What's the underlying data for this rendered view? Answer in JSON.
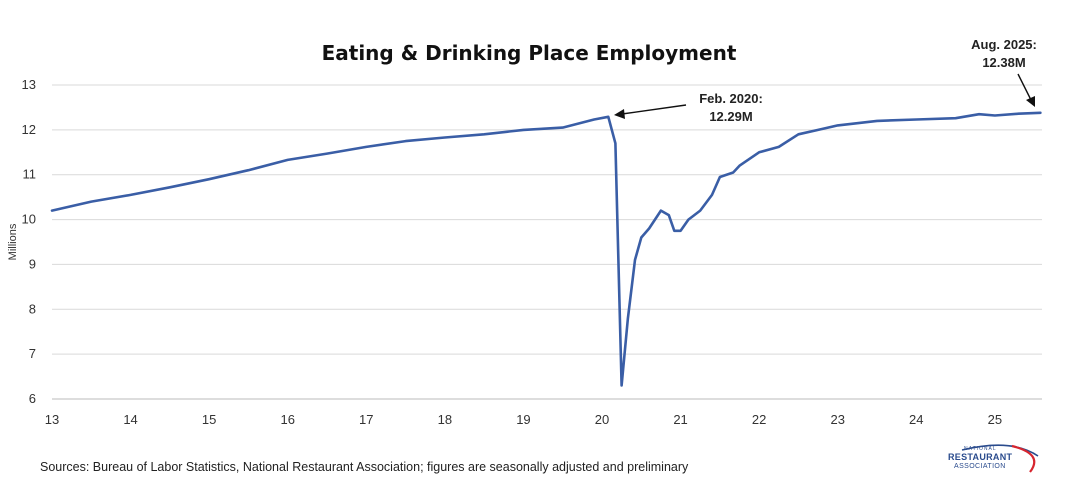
{
  "chart_data": {
    "type": "line",
    "title": "Eating & Drinking Place Employment",
    "xlabel": "",
    "ylabel": "Millions",
    "xlim": [
      13,
      25.6
    ],
    "ylim": [
      6,
      13
    ],
    "x_ticks": [
      "13",
      "14",
      "15",
      "16",
      "17",
      "18",
      "19",
      "20",
      "21",
      "22",
      "23",
      "24",
      "25"
    ],
    "y_ticks": [
      "6",
      "7",
      "8",
      "9",
      "10",
      "11",
      "12",
      "13"
    ],
    "grid": "horizontal",
    "series": [
      {
        "name": "Eating & Drinking Place Employment",
        "color": "#3a5ea6",
        "points": [
          [
            13.0,
            10.2
          ],
          [
            13.5,
            10.4
          ],
          [
            14.0,
            10.55
          ],
          [
            14.5,
            10.72
          ],
          [
            15.0,
            10.9
          ],
          [
            15.5,
            11.1
          ],
          [
            16.0,
            11.33
          ],
          [
            16.5,
            11.47
          ],
          [
            17.0,
            11.62
          ],
          [
            17.5,
            11.75
          ],
          [
            18.0,
            11.83
          ],
          [
            18.5,
            11.9
          ],
          [
            19.0,
            12.0
          ],
          [
            19.5,
            12.05
          ],
          [
            19.9,
            12.23
          ],
          [
            20.08,
            12.29
          ],
          [
            20.17,
            11.7
          ],
          [
            20.25,
            6.3
          ],
          [
            20.33,
            7.8
          ],
          [
            20.42,
            9.1
          ],
          [
            20.5,
            9.6
          ],
          [
            20.6,
            9.8
          ],
          [
            20.75,
            10.2
          ],
          [
            20.85,
            10.1
          ],
          [
            20.92,
            9.75
          ],
          [
            21.0,
            9.75
          ],
          [
            21.1,
            10.0
          ],
          [
            21.25,
            10.2
          ],
          [
            21.4,
            10.55
          ],
          [
            21.5,
            10.95
          ],
          [
            21.67,
            11.05
          ],
          [
            21.75,
            11.2
          ],
          [
            22.0,
            11.5
          ],
          [
            22.25,
            11.62
          ],
          [
            22.5,
            11.9
          ],
          [
            22.75,
            12.0
          ],
          [
            23.0,
            12.1
          ],
          [
            23.5,
            12.2
          ],
          [
            24.0,
            12.23
          ],
          [
            24.5,
            12.26
          ],
          [
            24.8,
            12.35
          ],
          [
            25.0,
            12.32
          ],
          [
            25.3,
            12.36
          ],
          [
            25.58,
            12.38
          ]
        ]
      }
    ],
    "annotations": [
      {
        "label": "Feb. 2020:",
        "value": "12.29M",
        "x": 20.08,
        "y": 12.29
      },
      {
        "label": "Aug. 2025:",
        "value": "12.38M",
        "x": 25.58,
        "y": 12.38
      }
    ],
    "source": "Sources: Bureau of Labor Statistics, National Restaurant Association; figures are seasonally adjusted and preliminary"
  },
  "logo": {
    "line1": "NATIONAL",
    "line2": "RESTAURANT",
    "line3": "ASSOCIATION",
    "color": "#2a4b8d",
    "accent": "#d7262f"
  }
}
